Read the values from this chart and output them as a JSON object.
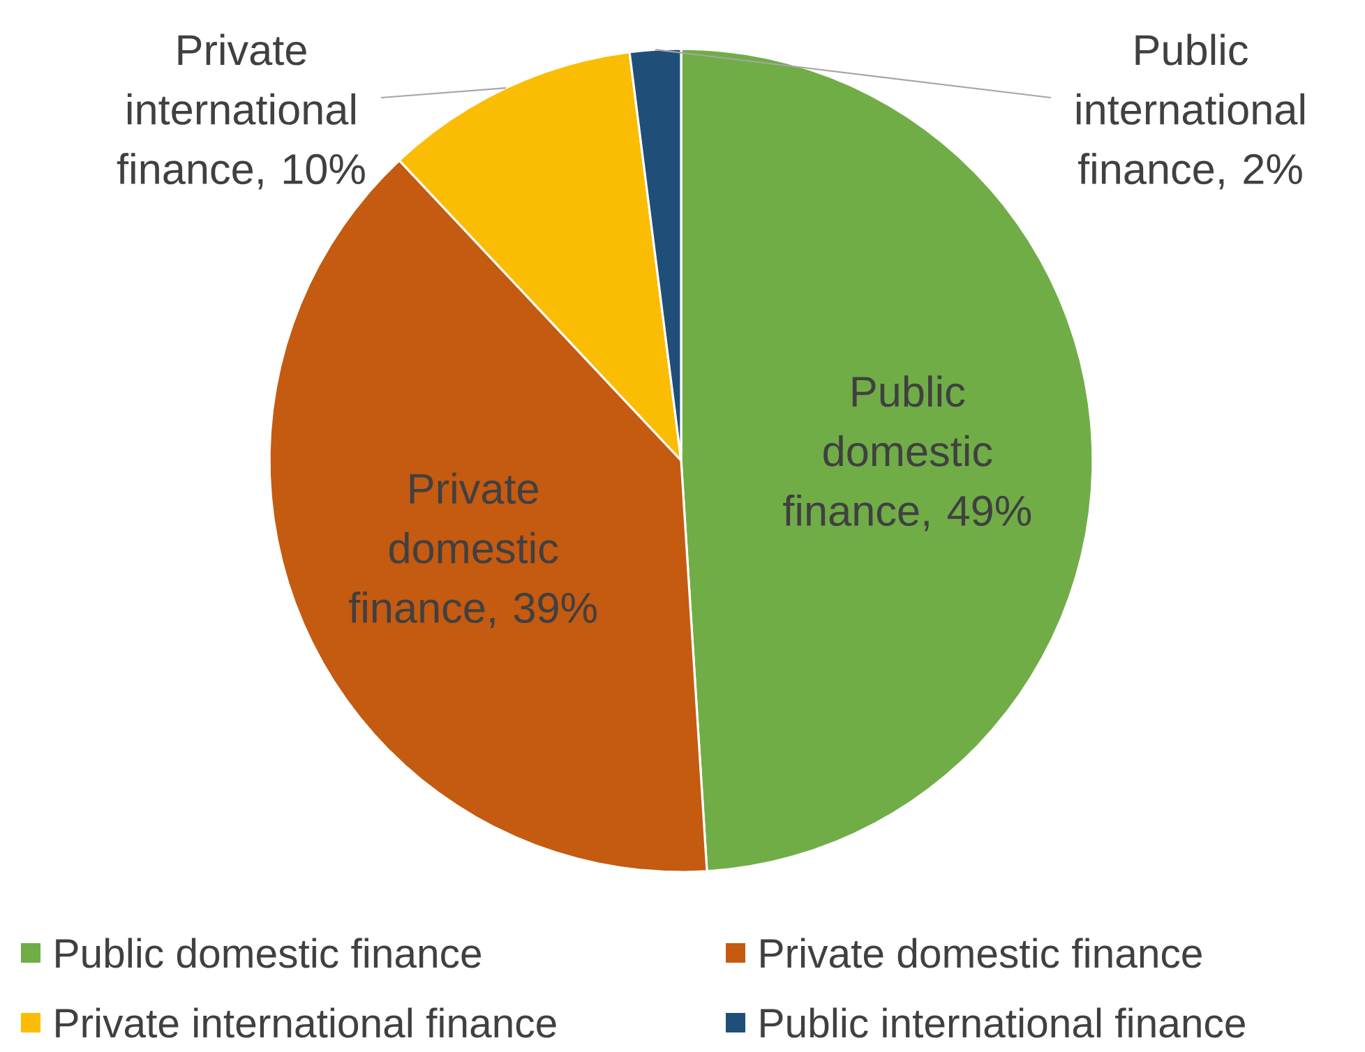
{
  "chart_data": {
    "type": "pie",
    "categories": [
      "Public domestic finance",
      "Private domestic finance",
      "Private international finance",
      "Public international finance"
    ],
    "values": [
      49,
      39,
      10,
      2
    ],
    "value_labels": [
      "Public domestic finance, 49%",
      "Private domestic finance, 39%",
      "Private international finance, 10%",
      "Public international finance, 2%"
    ],
    "colors": [
      "#70ad47",
      "#c55a11",
      "#fbbc04",
      "#1f4e79"
    ],
    "legend": "bottom"
  }
}
